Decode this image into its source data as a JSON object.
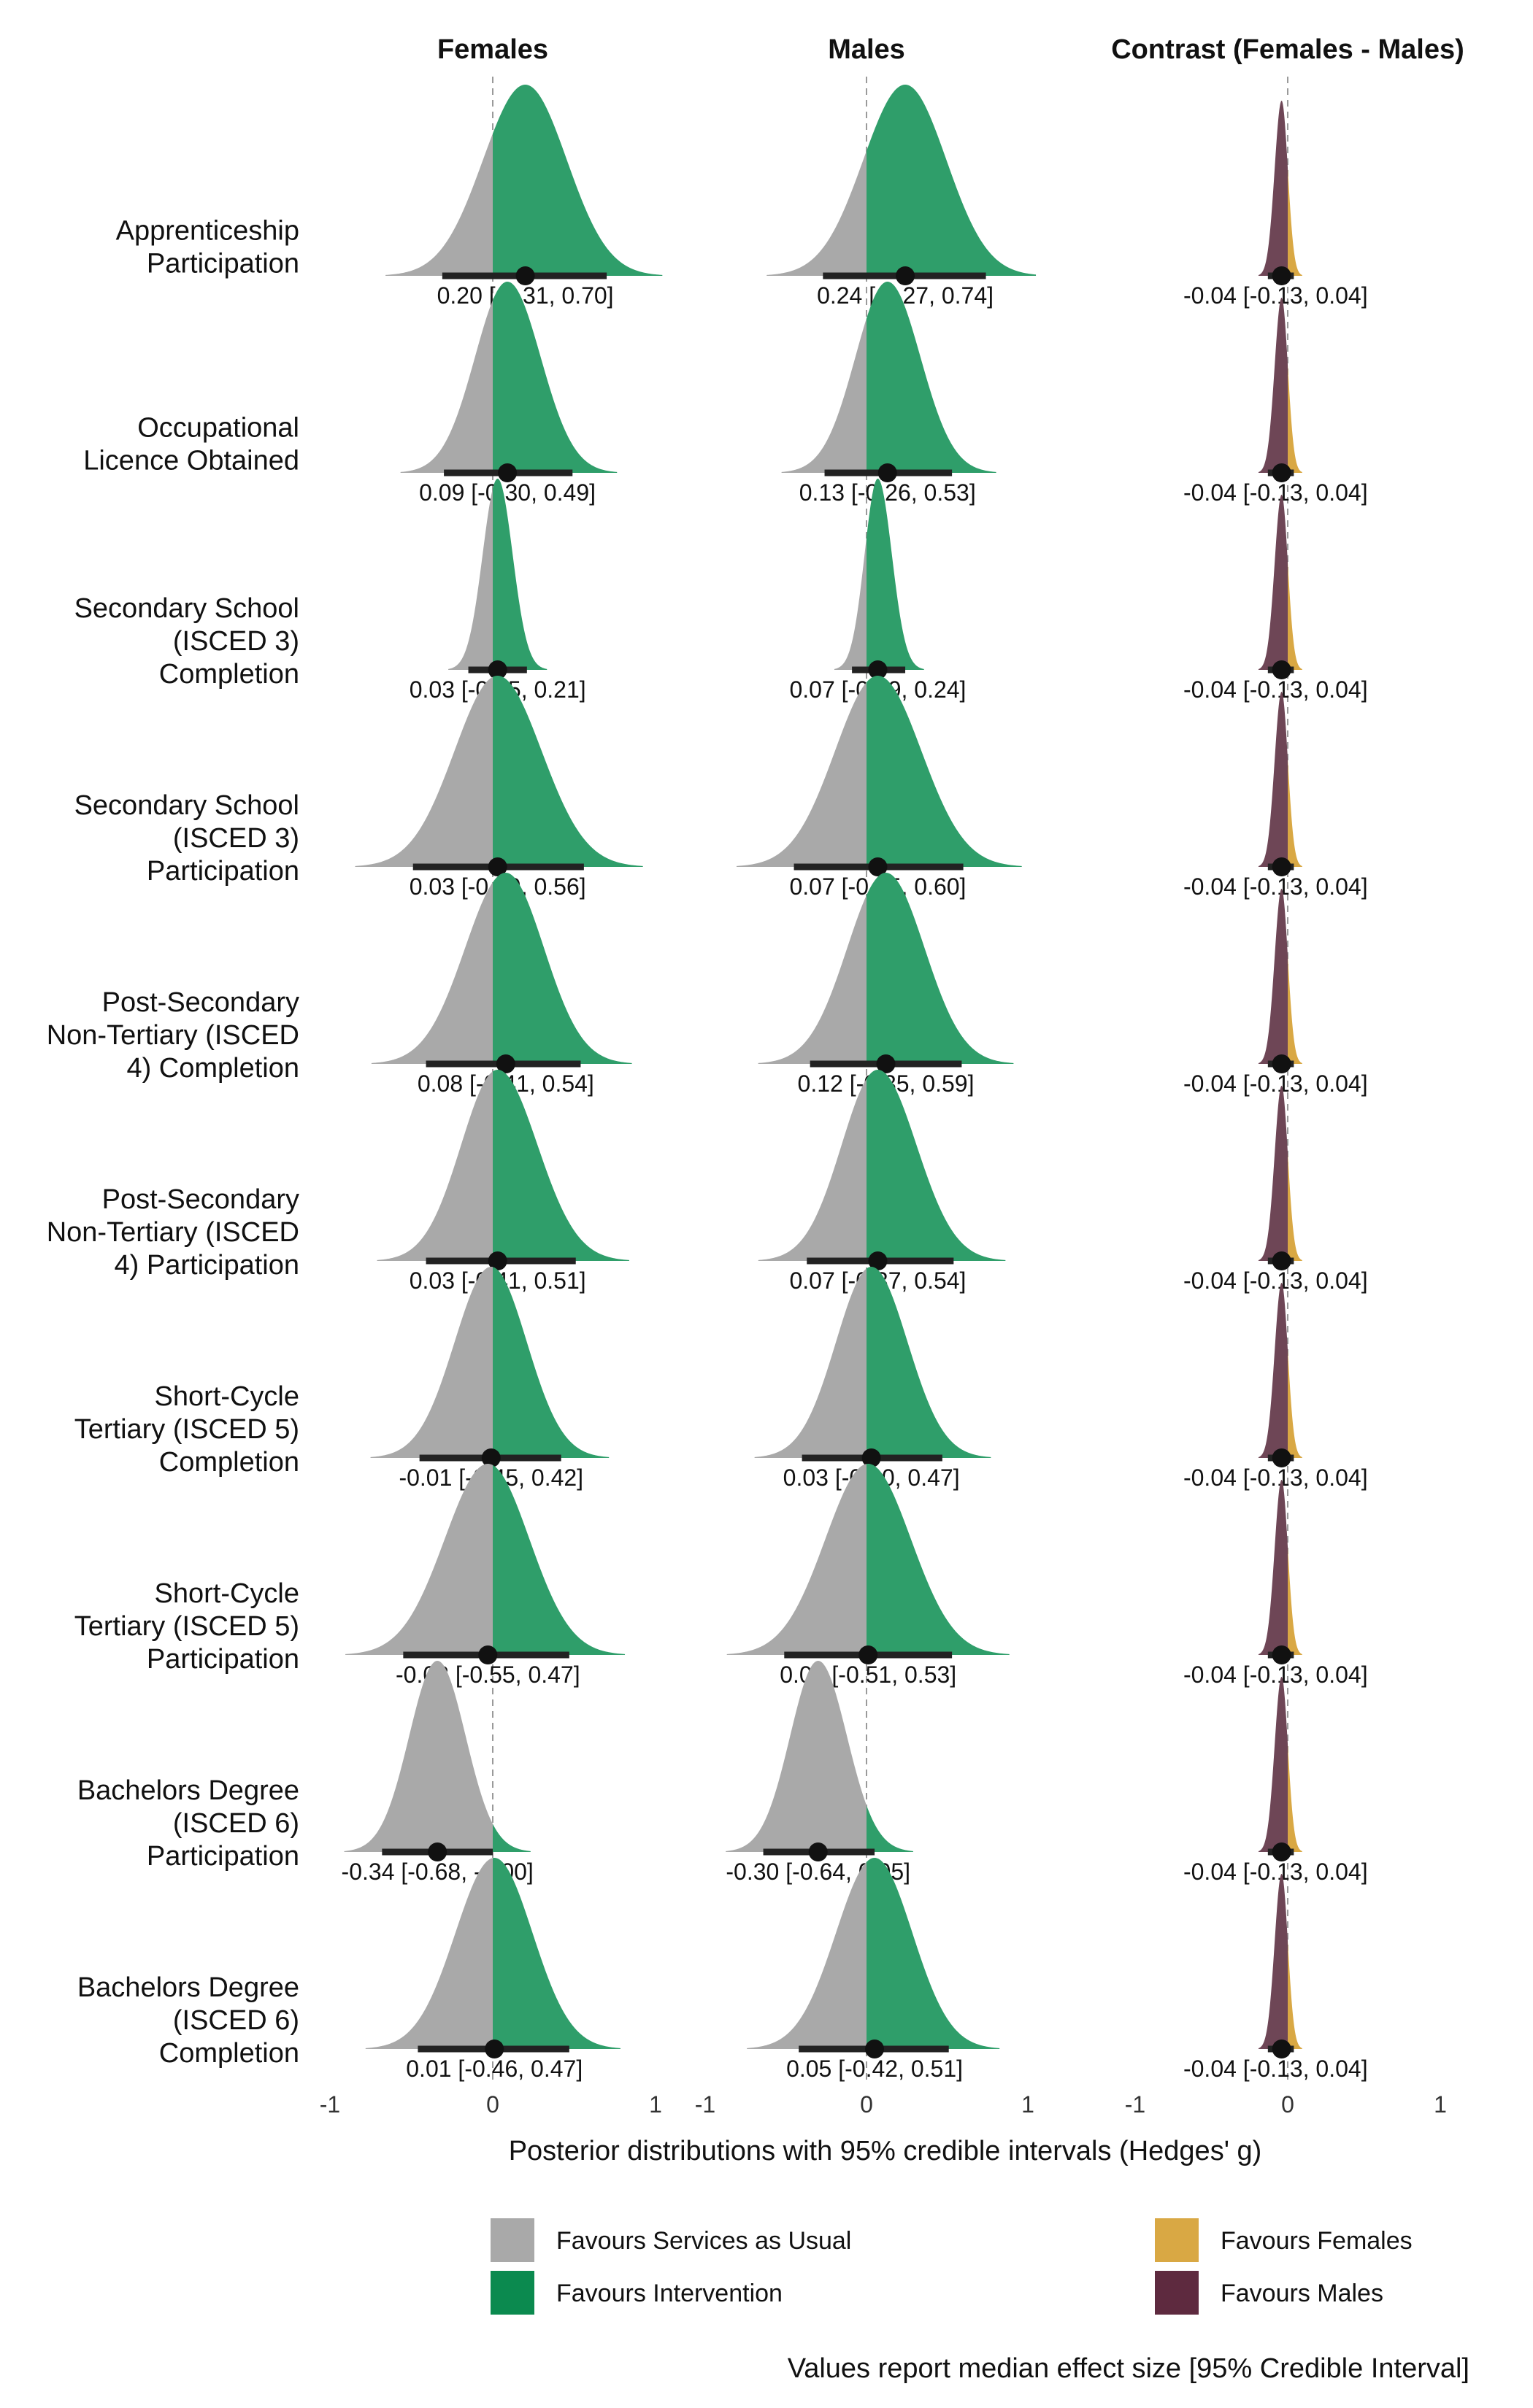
{
  "chart_data": {
    "type": "density-interval",
    "panels": [
      {
        "key": "females",
        "title": "Females"
      },
      {
        "key": "males",
        "title": "Males"
      },
      {
        "key": "contrast",
        "title": "Contrast (Females - Males)"
      }
    ],
    "xlim": [
      -1,
      1
    ],
    "x_ticks": [
      -1,
      0,
      1
    ],
    "x_tick_labels": [
      "-1",
      "0",
      "1"
    ],
    "xlabel": "Posterior distributions with 95% credible intervals (Hedges' g)",
    "rows": [
      {
        "label": [
          "Apprenticeship",
          "Participation"
        ],
        "females": {
          "median": 0.2,
          "lo": -0.31,
          "hi": 0.7,
          "text": "0.20 [-0.31, 0.70]"
        },
        "males": {
          "median": 0.24,
          "lo": -0.27,
          "hi": 0.74,
          "text": "0.24 [-0.27, 0.74]"
        },
        "contrast": {
          "median": -0.04,
          "lo": -0.13,
          "hi": 0.04,
          "text": "-0.04 [-0.13, 0.04]"
        }
      },
      {
        "label": [
          "Occupational",
          "Licence Obtained"
        ],
        "females": {
          "median": 0.09,
          "lo": -0.3,
          "hi": 0.49,
          "text": "0.09 [-0.30, 0.49]"
        },
        "males": {
          "median": 0.13,
          "lo": -0.26,
          "hi": 0.53,
          "text": "0.13 [-0.26, 0.53]"
        },
        "contrast": {
          "median": -0.04,
          "lo": -0.13,
          "hi": 0.04,
          "text": "-0.04 [-0.13, 0.04]"
        }
      },
      {
        "label": [
          "Secondary School",
          "(ISCED 3)",
          "Completion"
        ],
        "females": {
          "median": 0.03,
          "lo": -0.15,
          "hi": 0.21,
          "text": "0.03 [-0.15, 0.21]"
        },
        "males": {
          "median": 0.07,
          "lo": -0.09,
          "hi": 0.24,
          "text": "0.07 [-0.09, 0.24]"
        },
        "contrast": {
          "median": -0.04,
          "lo": -0.13,
          "hi": 0.04,
          "text": "-0.04 [-0.13, 0.04]"
        }
      },
      {
        "label": [
          "Secondary School",
          "(ISCED 3)",
          "Participation"
        ],
        "females": {
          "median": 0.03,
          "lo": -0.49,
          "hi": 0.56,
          "text": "0.03 [-0.49, 0.56]"
        },
        "males": {
          "median": 0.07,
          "lo": -0.45,
          "hi": 0.6,
          "text": "0.07 [-0.45, 0.60]"
        },
        "contrast": {
          "median": -0.04,
          "lo": -0.13,
          "hi": 0.04,
          "text": "-0.04 [-0.13, 0.04]"
        }
      },
      {
        "label": [
          "Post-Secondary",
          "Non-Tertiary (ISCED",
          "4) Completion"
        ],
        "females": {
          "median": 0.08,
          "lo": -0.41,
          "hi": 0.54,
          "text": "0.08 [-0.41, 0.54]"
        },
        "males": {
          "median": 0.12,
          "lo": -0.35,
          "hi": 0.59,
          "text": "0.12 [-0.35, 0.59]"
        },
        "contrast": {
          "median": -0.04,
          "lo": -0.13,
          "hi": 0.04,
          "text": "-0.04 [-0.13, 0.04]"
        }
      },
      {
        "label": [
          "Post-Secondary",
          "Non-Tertiary (ISCED",
          "4) Participation"
        ],
        "females": {
          "median": 0.03,
          "lo": -0.41,
          "hi": 0.51,
          "text": "0.03 [-0.41, 0.51]"
        },
        "males": {
          "median": 0.07,
          "lo": -0.37,
          "hi": 0.54,
          "text": "0.07 [-0.37, 0.54]"
        },
        "contrast": {
          "median": -0.04,
          "lo": -0.13,
          "hi": 0.04,
          "text": "-0.04 [-0.13, 0.04]"
        }
      },
      {
        "label": [
          "Short-Cycle",
          "Tertiary (ISCED 5)",
          "Completion"
        ],
        "females": {
          "median": -0.01,
          "lo": -0.45,
          "hi": 0.42,
          "text": "-0.01 [-0.45, 0.42]"
        },
        "males": {
          "median": 0.03,
          "lo": -0.4,
          "hi": 0.47,
          "text": "0.03 [-0.40, 0.47]"
        },
        "contrast": {
          "median": -0.04,
          "lo": -0.13,
          "hi": 0.04,
          "text": "-0.04 [-0.13, 0.04]"
        }
      },
      {
        "label": [
          "Short-Cycle",
          "Tertiary (ISCED 5)",
          "Participation"
        ],
        "females": {
          "median": -0.03,
          "lo": -0.55,
          "hi": 0.47,
          "text": "-0.03 [-0.55, 0.47]"
        },
        "males": {
          "median": 0.01,
          "lo": -0.51,
          "hi": 0.53,
          "text": "0.01 [-0.51, 0.53]"
        },
        "contrast": {
          "median": -0.04,
          "lo": -0.13,
          "hi": 0.04,
          "text": "-0.04 [-0.13, 0.04]"
        }
      },
      {
        "label": [
          "Bachelors Degree",
          "(ISCED 6)",
          "Participation"
        ],
        "females": {
          "median": -0.34,
          "lo": -0.68,
          "hi": -0.0,
          "text": "-0.34 [-0.68, -0.00]"
        },
        "males": {
          "median": -0.3,
          "lo": -0.64,
          "hi": 0.05,
          "text": "-0.30 [-0.64, 0.05]"
        },
        "contrast": {
          "median": -0.04,
          "lo": -0.13,
          "hi": 0.04,
          "text": "-0.04 [-0.13, 0.04]"
        }
      },
      {
        "label": [
          "Bachelors Degree",
          "(ISCED 6)",
          "Completion"
        ],
        "females": {
          "median": 0.01,
          "lo": -0.46,
          "hi": 0.47,
          "text": "0.01 [-0.46, 0.47]"
        },
        "males": {
          "median": 0.05,
          "lo": -0.42,
          "hi": 0.51,
          "text": "0.05 [-0.42, 0.51]"
        },
        "contrast": {
          "median": -0.04,
          "lo": -0.13,
          "hi": 0.04,
          "text": "-0.04 [-0.13, 0.04]"
        }
      }
    ],
    "legend": {
      "placement": "bottom",
      "items": [
        {
          "label": "Favours Services as Usual",
          "color": "#a9a9a9"
        },
        {
          "label": "Favours Intervention",
          "color": "#0b8a4f"
        },
        {
          "label": "Favours Females",
          "color": "#d9a844"
        },
        {
          "label": "Favours Males",
          "color": "#5e2a3f"
        }
      ]
    },
    "caption": "Values report median effect size [95% Credible Interval]",
    "colors": {
      "negative": "#a9a9a9",
      "positive": "#2f9e6a",
      "contrast_negative": "#6e4656",
      "contrast_positive": "#d9a844",
      "interval": "#222222",
      "zero_line": "#9a9a9a"
    }
  }
}
